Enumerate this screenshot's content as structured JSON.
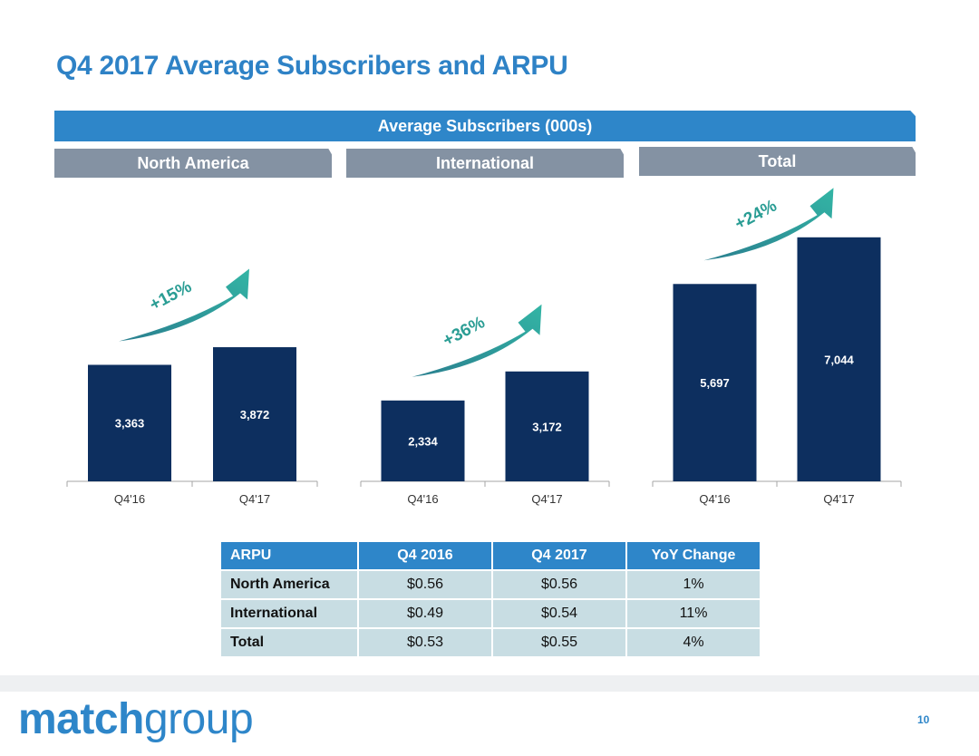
{
  "title": "Q4 2017 Average Subscribers and ARPU",
  "banner": "Average Subscribers (000s)",
  "regions": [
    "North America",
    "International",
    "Total"
  ],
  "colors": {
    "bar": "#0d2f5f",
    "accent_blue": "#2e86c9",
    "growth": "#2a9d94"
  },
  "chart_data": [
    {
      "type": "bar",
      "title": "North America",
      "categories": [
        "Q4'16",
        "Q4'17"
      ],
      "values": [
        3363,
        3872
      ],
      "labels": [
        "3,363",
        "3,872"
      ],
      "growth": "+15%"
    },
    {
      "type": "bar",
      "title": "International",
      "categories": [
        "Q4'16",
        "Q4'17"
      ],
      "values": [
        2334,
        3172
      ],
      "labels": [
        "2,334",
        "3,172"
      ],
      "growth": "+36%"
    },
    {
      "type": "bar",
      "title": "Total",
      "categories": [
        "Q4'16",
        "Q4'17"
      ],
      "values": [
        5697,
        7044
      ],
      "labels": [
        "5,697",
        "7,044"
      ],
      "growth": "+24%"
    }
  ],
  "table": {
    "headers": [
      "ARPU",
      "Q4 2016",
      "Q4 2017",
      "YoY Change"
    ],
    "rows": [
      [
        "North America",
        "$0.56",
        "$0.56",
        "1%"
      ],
      [
        "International",
        "$0.49",
        "$0.54",
        "11%"
      ],
      [
        "Total",
        "$0.53",
        "$0.55",
        "4%"
      ]
    ]
  },
  "logo": {
    "part1": "match",
    "part2": "group"
  },
  "page_number": "10"
}
